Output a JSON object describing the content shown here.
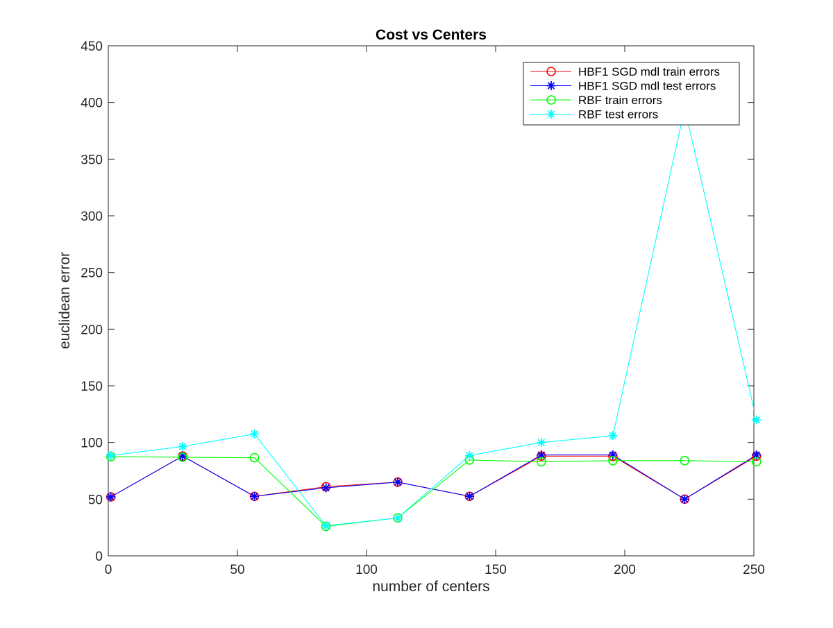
{
  "chart_data": {
    "type": "line",
    "title": "Cost vs Centers",
    "xlabel": "number of centers",
    "ylabel": "euclidean error",
    "xlim": [
      0,
      250
    ],
    "ylim": [
      0,
      450
    ],
    "xticks": [
      0,
      50,
      100,
      150,
      200,
      250
    ],
    "yticks": [
      0,
      50,
      100,
      150,
      200,
      250,
      300,
      350,
      400,
      450
    ],
    "grid": false,
    "legend_position": "top-right",
    "x": [
      1,
      28.8,
      56.6,
      84.3,
      112.1,
      139.9,
      167.7,
      195.4,
      223.2,
      251
    ],
    "series": [
      {
        "name": "HBF1 SGD mdl train errors",
        "color": "#ff0000",
        "marker": "circle",
        "values": [
          52,
          88,
          52.5,
          61,
          65,
          52.5,
          88,
          88,
          50,
          88
        ]
      },
      {
        "name": "HBF1 SGD mdl test errors",
        "color": "#0000ff",
        "marker": "asterisk",
        "values": [
          52,
          88,
          52.5,
          60,
          65,
          52.5,
          89,
          89,
          50,
          89
        ]
      },
      {
        "name": "RBF train errors",
        "color": "#00ff00",
        "marker": "circle",
        "values": [
          87.5,
          87,
          86.5,
          26,
          33.5,
          84.5,
          83,
          84,
          84,
          83
        ]
      },
      {
        "name": "RBF test errors",
        "color": "#00ffff",
        "marker": "asterisk",
        "values": [
          88.5,
          96.5,
          107.5,
          26.5,
          33.5,
          88.5,
          100,
          106,
          395,
          120
        ]
      }
    ]
  }
}
